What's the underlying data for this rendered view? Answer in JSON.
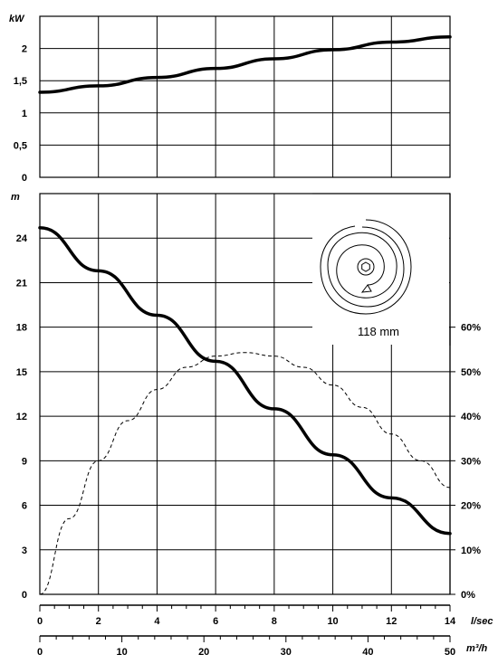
{
  "chart_data": [
    {
      "type": "line",
      "ylabel": "kW",
      "ylim": [
        0,
        2.5
      ],
      "y_ticks": [
        "0",
        "0,5",
        "1",
        "1,5",
        "2"
      ],
      "y_tick_values": [
        0,
        0.5,
        1,
        1.5,
        2
      ],
      "x_unit": "l/sec",
      "xlim": [
        0,
        14
      ],
      "grid": true,
      "series": [
        {
          "x": [
            0,
            2,
            4,
            6,
            8,
            10,
            12,
            14
          ],
          "y": [
            1.32,
            1.42,
            1.55,
            1.69,
            1.84,
            1.98,
            2.1,
            2.18
          ]
        }
      ]
    },
    {
      "type": "line",
      "ylabel": "m",
      "ylim": [
        0,
        27
      ],
      "y_ticks": [
        "0",
        "3",
        "6",
        "9",
        "12",
        "15",
        "18",
        "21",
        "24"
      ],
      "y_tick_values": [
        0,
        3,
        6,
        9,
        12,
        15,
        18,
        21,
        24
      ],
      "right_axis": {
        "ylim": [
          0,
          60
        ],
        "ticks": [
          "0%",
          "10%",
          "20%",
          "30%",
          "40%",
          "50%",
          "60%"
        ],
        "tick_values": [
          0,
          10,
          20,
          30,
          40,
          50,
          60
        ]
      },
      "x_axes": [
        {
          "unit": "l/sec",
          "range": [
            0,
            14
          ],
          "ticks": [
            "0",
            "2",
            "4",
            "6",
            "8",
            "10",
            "12",
            "14"
          ],
          "tick_values": [
            0,
            2,
            4,
            6,
            8,
            10,
            12,
            14
          ]
        },
        {
          "unit": "m³/h",
          "range": [
            0,
            50
          ],
          "ticks": [
            "0",
            "10",
            "20",
            "30",
            "40",
            "50"
          ],
          "tick_values": [
            0,
            10,
            20,
            30,
            40,
            50
          ]
        }
      ],
      "grid": true,
      "series": [
        {
          "axis": "left",
          "style": "solid",
          "x": [
            0,
            2,
            4,
            6,
            8,
            10,
            12,
            14
          ],
          "y": [
            24.7,
            21.8,
            18.8,
            15.7,
            12.5,
            9.4,
            6.5,
            4.1
          ]
        },
        {
          "axis": "right",
          "style": "dashed",
          "x": [
            0,
            1,
            2,
            3,
            4,
            5,
            6,
            7,
            8,
            9,
            10,
            11,
            12,
            13,
            14
          ],
          "y": [
            0,
            17,
            30,
            39,
            46,
            51,
            53.5,
            54.3,
            53.5,
            51,
            47,
            42,
            36,
            30,
            24
          ]
        }
      ]
    }
  ],
  "impeller": {
    "label": "118 mm",
    "icon": "impeller-icon"
  }
}
